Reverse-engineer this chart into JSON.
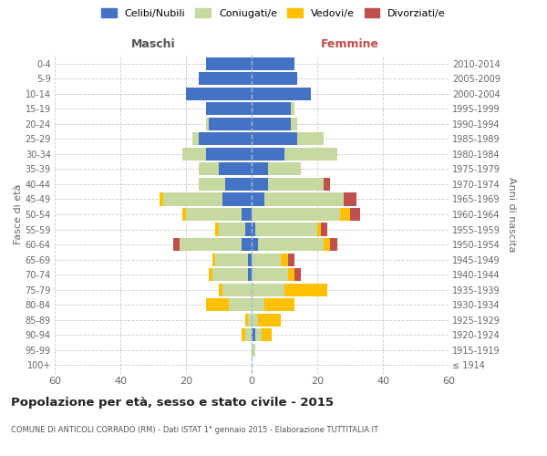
{
  "age_groups": [
    "100+",
    "95-99",
    "90-94",
    "85-89",
    "80-84",
    "75-79",
    "70-74",
    "65-69",
    "60-64",
    "55-59",
    "50-54",
    "45-49",
    "40-44",
    "35-39",
    "30-34",
    "25-29",
    "20-24",
    "15-19",
    "10-14",
    "5-9",
    "0-4"
  ],
  "birth_years": [
    "≤ 1914",
    "1915-1919",
    "1920-1924",
    "1925-1929",
    "1930-1934",
    "1935-1939",
    "1940-1944",
    "1945-1949",
    "1950-1954",
    "1955-1959",
    "1960-1964",
    "1965-1969",
    "1970-1974",
    "1975-1979",
    "1980-1984",
    "1985-1989",
    "1990-1994",
    "1995-1999",
    "2000-2004",
    "2005-2009",
    "2010-2014"
  ],
  "male": {
    "celibi": [
      0,
      0,
      0,
      0,
      0,
      0,
      1,
      1,
      3,
      2,
      3,
      9,
      8,
      10,
      14,
      16,
      13,
      14,
      20,
      16,
      14
    ],
    "coniugati": [
      0,
      0,
      2,
      1,
      7,
      9,
      11,
      10,
      19,
      8,
      17,
      18,
      8,
      6,
      7,
      2,
      1,
      0,
      0,
      0,
      0
    ],
    "vedovi": [
      0,
      0,
      1,
      1,
      7,
      1,
      1,
      1,
      0,
      1,
      1,
      1,
      0,
      0,
      0,
      0,
      0,
      0,
      0,
      0,
      0
    ],
    "divorziati": [
      0,
      0,
      0,
      0,
      0,
      0,
      0,
      0,
      2,
      0,
      0,
      0,
      0,
      0,
      0,
      0,
      0,
      0,
      0,
      0,
      0
    ]
  },
  "female": {
    "nubili": [
      0,
      0,
      1,
      0,
      0,
      0,
      0,
      0,
      2,
      1,
      0,
      4,
      5,
      5,
      10,
      14,
      12,
      12,
      18,
      14,
      13
    ],
    "coniugate": [
      0,
      1,
      2,
      2,
      4,
      10,
      11,
      9,
      20,
      19,
      27,
      24,
      17,
      10,
      16,
      8,
      2,
      1,
      0,
      0,
      0
    ],
    "vedove": [
      0,
      0,
      3,
      7,
      9,
      13,
      2,
      2,
      2,
      1,
      3,
      0,
      0,
      0,
      0,
      0,
      0,
      0,
      0,
      0,
      0
    ],
    "divorziate": [
      0,
      0,
      0,
      0,
      0,
      0,
      2,
      2,
      2,
      2,
      3,
      4,
      2,
      0,
      0,
      0,
      0,
      0,
      0,
      0,
      0
    ]
  },
  "colors": {
    "celibi": "#4472c4",
    "coniugati": "#c5d9a0",
    "vedovi": "#ffc000",
    "divorziati": "#c0504d"
  },
  "xlim": 60,
  "title": "Popolazione per età, sesso e stato civile - 2015",
  "subtitle": "COMUNE DI ANTICOLI CORRADO (RM) - Dati ISTAT 1° gennaio 2015 - Elaborazione TUTTITALIA.IT",
  "ylabel_left": "Fasce di età",
  "ylabel_right": "Anni di nascita",
  "bg_color": "#ffffff",
  "grid_color": "#cccccc",
  "bar_height": 0.85
}
